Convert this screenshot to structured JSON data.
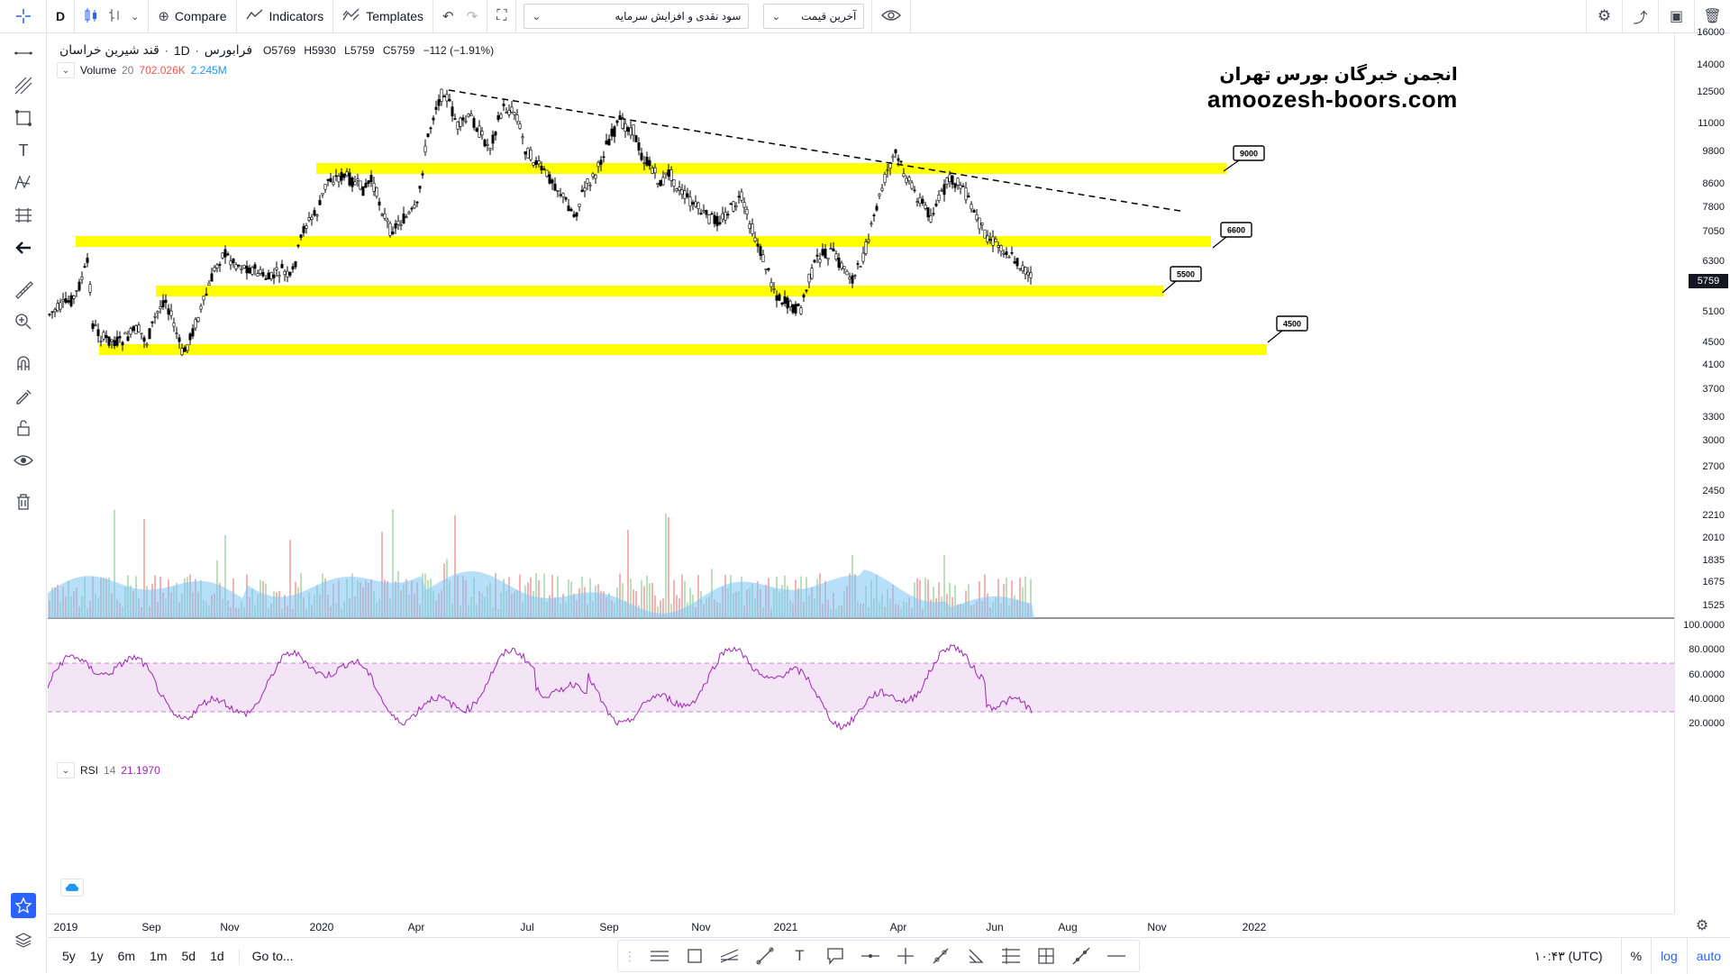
{
  "toolbar": {
    "interval": "D",
    "compare": "Compare",
    "indicators": "Indicators",
    "templates": "Templates",
    "dropdown1": "سود نقدی و افزایش سرمایه",
    "dropdown2": "آخرین قیمت"
  },
  "legend": {
    "symbol": "قند شیرین خراسان",
    "timeframe": "1D",
    "exchange": "فرابورس",
    "open_label": "O",
    "open": "5769",
    "high_label": "H",
    "high": "5930",
    "low_label": "L",
    "low": "5759",
    "close_label": "C",
    "close": "5759",
    "change": "−112 (−1.91%)",
    "volume_name": "Volume",
    "volume_len": "20",
    "volume_val": "702.026K",
    "volume_ma": "2.245M",
    "rsi_name": "RSI",
    "rsi_len": "14",
    "rsi_val": "21.1970"
  },
  "watermark": {
    "line1": "انجمن خبرگان بورس تهران",
    "line2": "amoozesh-boors.com"
  },
  "annotations": [
    {
      "label": "9000"
    },
    {
      "label": "6600"
    },
    {
      "label": "5500"
    },
    {
      "label": "4500"
    }
  ],
  "price_axis": [
    "16000",
    "14000",
    "12500",
    "11000",
    "9800",
    "8600",
    "7800",
    "7050",
    "6300",
    "5759",
    "5100",
    "4500",
    "4100",
    "3700",
    "3300",
    "3000",
    "2700",
    "2450",
    "2210",
    "2010",
    "1835",
    "1675",
    "1525"
  ],
  "rsi_axis": [
    "100.0000",
    "80.0000",
    "60.0000",
    "40.0000",
    "20.0000"
  ],
  "current_price": "5759",
  "time_axis": [
    "2019",
    "Sep",
    "Nov",
    "2020",
    "Apr",
    "Jul",
    "Sep",
    "Nov",
    "2021",
    "Apr",
    "Jun",
    "Aug",
    "Nov",
    "2022"
  ],
  "bottom": {
    "ranges": [
      "5y",
      "1y",
      "6m",
      "1m",
      "5d",
      "1d"
    ],
    "goto": "Go to...",
    "time": "۱۰:۴۳ (UTC)",
    "pct": "%",
    "log": "log",
    "auto": "auto"
  },
  "colors": {
    "zone": "#ffff00",
    "rsi_line": "#9c27b0",
    "rsi_band": "#f3e5f5",
    "volume_ma": "#7ec4f5"
  },
  "chart_data": {
    "type": "candlestick",
    "horizontal_levels": [
      9000,
      6600,
      5500,
      4500
    ],
    "last_close": 5759,
    "rsi_levels": [
      70,
      30
    ]
  }
}
